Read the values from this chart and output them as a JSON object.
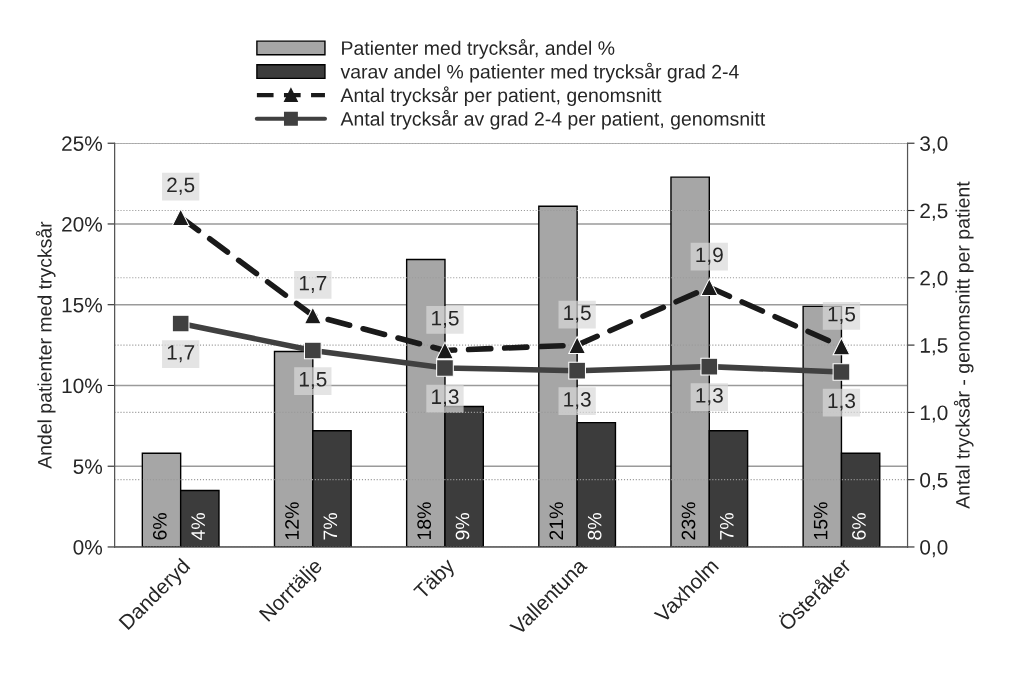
{
  "chart_data": {
    "type": "bar",
    "categories": [
      "Danderyd",
      "Norrtälje",
      "Täby",
      "Vallentuna",
      "Vaxholm",
      "Österåker"
    ],
    "ylabel": "Andel patienter med trycksår",
    "y2label": "Antal trycksår - genomsnitt per patient",
    "ylim": [
      0,
      25
    ],
    "yticks": [
      {
        "value": 0,
        "label": "0%"
      },
      {
        "value": 5,
        "label": "5%"
      },
      {
        "value": 10,
        "label": "10%"
      },
      {
        "value": 15,
        "label": "15%"
      },
      {
        "value": 20,
        "label": "20%"
      },
      {
        "value": 25,
        "label": "25%"
      }
    ],
    "y2lim": [
      0,
      3
    ],
    "y2ticks": [
      {
        "value": 0,
        "label": "0,0"
      },
      {
        "value": 0.5,
        "label": "0,5"
      },
      {
        "value": 1,
        "label": "1,0"
      },
      {
        "value": 1.5,
        "label": "1,5"
      },
      {
        "value": 2,
        "label": "2,0"
      },
      {
        "value": 2.5,
        "label": "2,5"
      },
      {
        "value": 3,
        "label": "3,0"
      }
    ],
    "grid": true,
    "legend": "top",
    "series": [
      {
        "name": "Patienter med trycksår, andel %",
        "color": "#a6a6a6",
        "values": [
          5.8,
          12.1,
          17.8,
          21.1,
          22.9,
          14.9
        ],
        "value_labels": [
          "6%",
          "12%",
          "18%",
          "21%",
          "23%",
          "15%"
        ]
      },
      {
        "name": "varav andel % patienter med trycksår grad 2-4",
        "color": "#3c3c3c",
        "values": [
          3.5,
          7.2,
          8.7,
          7.7,
          7.2,
          5.8
        ],
        "value_labels": [
          "4%",
          "7%",
          "9%",
          "8%",
          "7%",
          "6%"
        ]
      },
      {
        "name": "Antal trycksår per patient, genomsnitt",
        "type": "line",
        "axis": "y2",
        "color": "#1a1a1a",
        "marker": "triangle",
        "line_style": "dashed",
        "values": [
          2.45,
          1.72,
          1.46,
          1.5,
          1.93,
          1.49
        ],
        "value_labels": [
          "2,5",
          "1,7",
          "1,5",
          "1,5",
          "1,9",
          "1,5"
        ]
      },
      {
        "name": "Antal trycksår av grad 2-4 per patient, genomsnitt",
        "type": "line",
        "axis": "y2",
        "color": "#404040",
        "marker": "square",
        "line_style": "solid",
        "values": [
          1.66,
          1.46,
          1.33,
          1.31,
          1.34,
          1.3
        ],
        "value_labels": [
          "1,7",
          "1,5",
          "1,3",
          "1,3",
          "1,3",
          "1,3"
        ]
      }
    ]
  }
}
